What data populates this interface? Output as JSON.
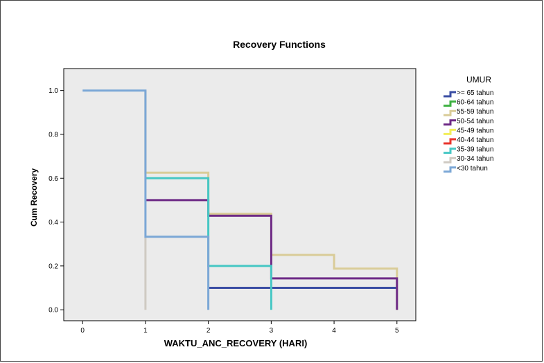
{
  "chart_data": {
    "type": "line",
    "title": "Recovery Functions",
    "xlabel": "WAKTU_ANC_RECOVERY (HARI)",
    "ylabel": "Cum Recovery",
    "xlim": [
      -0.3,
      5.3
    ],
    "ylim": [
      -0.05,
      1.1
    ],
    "x_ticks": [
      0,
      1,
      2,
      3,
      4,
      5
    ],
    "y_ticks": [
      0.0,
      0.2,
      0.4,
      0.6,
      0.8,
      1.0
    ],
    "x_tick_labels": [
      "0",
      "1",
      "2",
      "3",
      "4",
      "5"
    ],
    "y_tick_labels": [
      "0.0",
      "0.2",
      "0.4",
      "0.6",
      "0.8",
      "1.0"
    ],
    "plot_background": "#ebebeb",
    "legend": {
      "title": "UMUR",
      "position": "right"
    },
    "series": [
      {
        "name": ">= 65 tahun",
        "color": "#3a4da3",
        "points": [
          [
            2,
            0.1
          ],
          [
            5,
            0.1
          ]
        ]
      },
      {
        "name": "60-64 tahun",
        "color": "#3cb040",
        "points": []
      },
      {
        "name": "55-59 tahun",
        "color": "#d9cc98",
        "points": [
          [
            1,
            1.0
          ],
          [
            1,
            0.625
          ],
          [
            2,
            0.625
          ],
          [
            2,
            0.438
          ],
          [
            3,
            0.438
          ],
          [
            3,
            0.25
          ],
          [
            4,
            0.25
          ],
          [
            4,
            0.188
          ],
          [
            5,
            0.188
          ],
          [
            5,
            0.0
          ]
        ]
      },
      {
        "name": "50-54 tahun",
        "color": "#6e2a86",
        "points": [
          [
            1,
            0.5
          ],
          [
            2,
            0.5
          ],
          [
            2,
            0.429
          ],
          [
            3,
            0.429
          ],
          [
            3,
            0.143
          ],
          [
            5,
            0.143
          ],
          [
            5,
            0.0
          ]
        ]
      },
      {
        "name": "45-49 tahun",
        "color": "#f2ee5a",
        "points": []
      },
      {
        "name": "40-44 tahun",
        "color": "#e8352c",
        "points": []
      },
      {
        "name": "35-39 tahun",
        "color": "#46c7c4",
        "points": [
          [
            1,
            0.6
          ],
          [
            2,
            0.6
          ],
          [
            2,
            0.2
          ],
          [
            3,
            0.2
          ],
          [
            3,
            0.0
          ]
        ]
      },
      {
        "name": "30-34 tahun",
        "color": "#cfcac2",
        "points": [
          [
            1,
            0.333
          ],
          [
            1,
            0.0
          ]
        ]
      },
      {
        "name": "<30 tahun",
        "color": "#7ba7d6",
        "points": [
          [
            0,
            1.0
          ],
          [
            1,
            1.0
          ],
          [
            1,
            0.333
          ],
          [
            2,
            0.333
          ],
          [
            2,
            0.0
          ]
        ]
      }
    ]
  }
}
